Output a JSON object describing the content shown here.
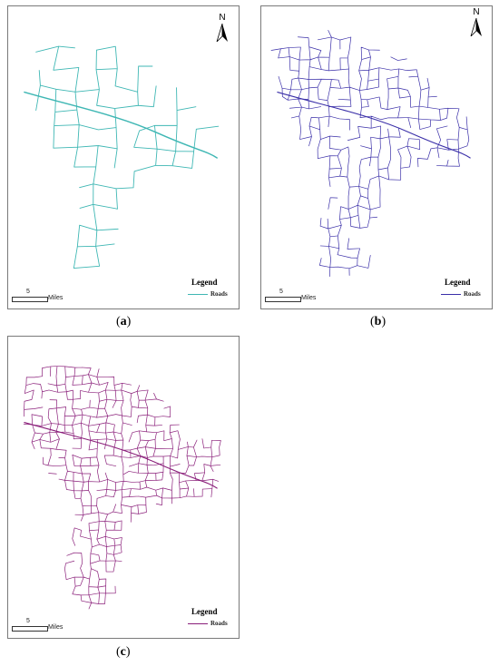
{
  "panels": [
    {
      "id": "a",
      "caption_open": "(",
      "caption_letter": "a",
      "caption_close": ")",
      "north_label": "N",
      "scale_number": "5",
      "scale_unit": "Miles",
      "legend_title": "Legend",
      "legend_item": "Roads",
      "road_color": "#3fb7b4",
      "road_density": "sparse"
    },
    {
      "id": "b",
      "caption_open": "(",
      "caption_letter": "b",
      "caption_close": ")",
      "north_label": "N",
      "scale_number": "5",
      "scale_unit": "Miles",
      "legend_title": "Legend",
      "legend_item": "Roads",
      "road_color": "#3a2fa8",
      "road_density": "dense"
    },
    {
      "id": "c",
      "caption_open": "(",
      "caption_letter": "c",
      "caption_close": ")",
      "north_label": "",
      "scale_number": "5",
      "scale_unit": "Miles",
      "legend_title": "Legend",
      "legend_item": "Roads",
      "road_color": "#8a1f7a",
      "road_density": "very-dense"
    }
  ]
}
